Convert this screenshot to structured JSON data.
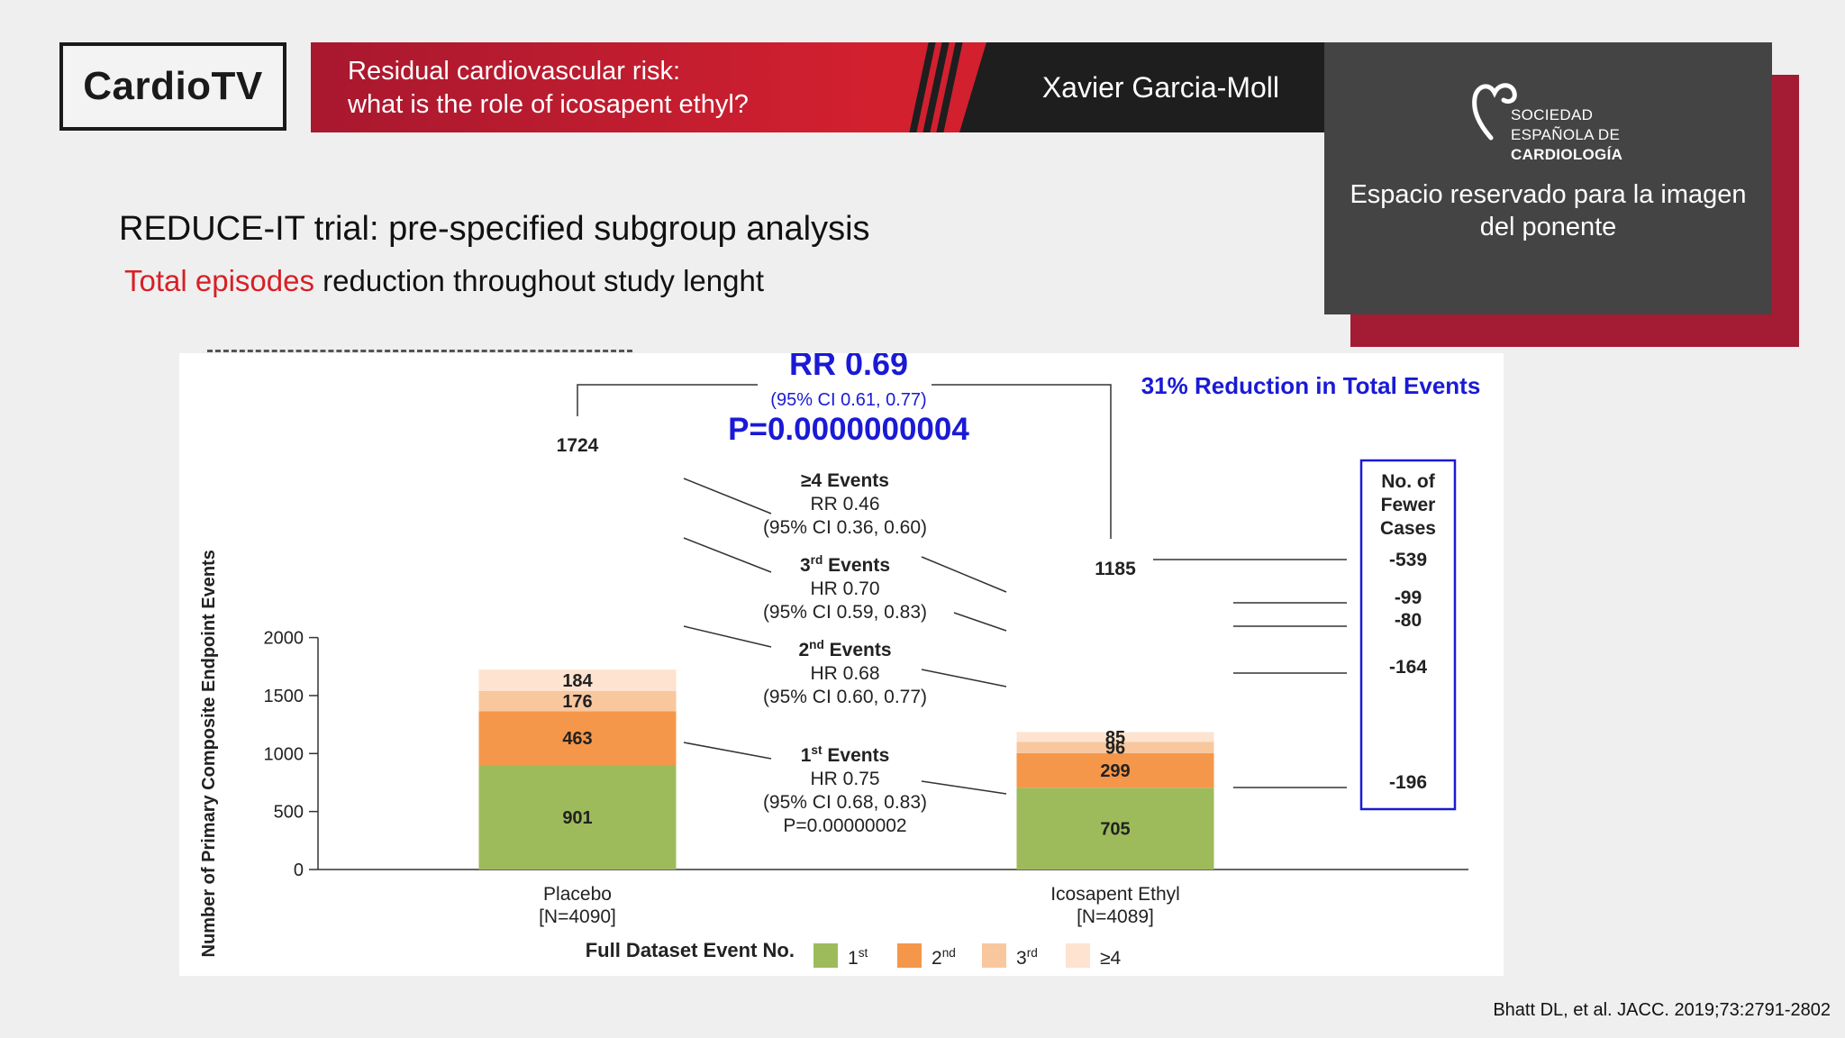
{
  "header": {
    "logo": "CardioTV",
    "subtitle_line1": "Residual cardiovascular risk:",
    "subtitle_line2": "what is the role of icosapent ethyl?",
    "speaker": "Xavier Garcia-Moll"
  },
  "sponsor": {
    "logo_line1": "SOCIEDAD",
    "logo_line2": "ESPAÑOLA DE",
    "logo_line3": "CARDIOLOGÍA",
    "reserved_line1": "Espacio reservado para la imagen",
    "reserved_line2": "del ponente"
  },
  "slide": {
    "title": "REDUCE-IT trial: pre-specified subgroup analysis",
    "subtitle_highlight": "Total episodes",
    "subtitle_rest": " reduction throughout study lenght"
  },
  "citation": "Bhatt DL, et al. JACC. 2019;73:2791-2802",
  "colors": {
    "brand_red": "#d2202f",
    "first": "#9dbb5b",
    "second": "#f5974a",
    "third": "#f9c79e",
    "fourth": "#fde3d0",
    "accent_blue": "#1a1ad6"
  },
  "chart_data": {
    "type": "bar",
    "stacked": true,
    "ylabel": "Number of Primary Composite Endpoint Events",
    "ylim": [
      0,
      2000
    ],
    "yticks": [
      "0",
      "500",
      "1000",
      "1500",
      "2000"
    ],
    "yticks_values": [
      0,
      500,
      1000,
      1500,
      2000
    ],
    "categories": [
      "Placebo",
      "Icosapent Ethyl"
    ],
    "category_sublabels": [
      "[N=4090]",
      "[N=4089]"
    ],
    "series": [
      {
        "name": "1st",
        "values": [
          901,
          705
        ]
      },
      {
        "name": "2nd",
        "values": [
          463,
          299
        ]
      },
      {
        "name": "3rd",
        "values": [
          176,
          96
        ]
      },
      {
        "name": "≥4",
        "values": [
          184,
          85
        ]
      }
    ],
    "totals": [
      1724,
      1185
    ],
    "legend_title": "Full Dataset Event No.",
    "legend_labels": [
      {
        "base": "1",
        "sup": "st"
      },
      {
        "base": "2",
        "sup": "nd"
      },
      {
        "base": "3",
        "sup": "rd"
      },
      {
        "base": "≥4",
        "sup": ""
      }
    ],
    "rr_title": "RR 0.69",
    "rr_ci": "(95% CI 0.61, 0.77)",
    "rr_p": "P=0.0000000004",
    "reduction_label": "31% Reduction in Total Events",
    "annotations": [
      {
        "title_base": "≥4",
        "title_sup": "",
        "title_rest": " Events",
        "line1": "RR 0.46",
        "line2": "(95% CI 0.36, 0.60)",
        "line3": ""
      },
      {
        "title_base": "3",
        "title_sup": "rd",
        "title_rest": " Events",
        "line1": "HR 0.70",
        "line2": "(95% CI 0.59, 0.83)",
        "line3": ""
      },
      {
        "title_base": "2",
        "title_sup": "nd",
        "title_rest": " Events",
        "line1": "HR 0.68",
        "line2": "(95% CI 0.60, 0.77)",
        "line3": ""
      },
      {
        "title_base": "1",
        "title_sup": "st",
        "title_rest": " Events",
        "line1": "HR 0.75",
        "line2": "(95% CI 0.68, 0.83)",
        "line3": "P=0.00000002"
      }
    ],
    "fewer_cases_title": [
      "No. of",
      "Fewer",
      "Cases"
    ],
    "fewer_cases": [
      "-539",
      "-99",
      "-80",
      "-164",
      "-196"
    ]
  }
}
